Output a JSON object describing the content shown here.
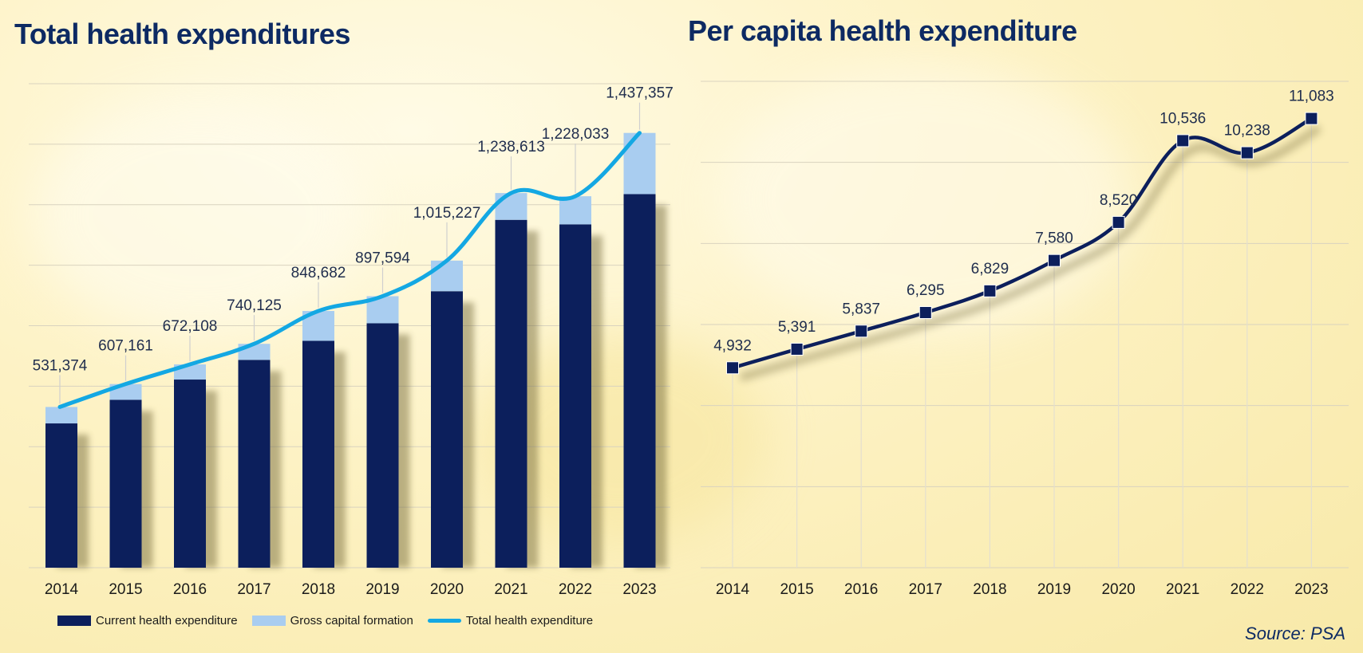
{
  "colors": {
    "current": "#0c1f5c",
    "gross": "#a9cdf0",
    "total_line": "#14a8e3",
    "per_capita_line": "#0c1f5c",
    "grid": "#d9d3bf",
    "title": "#0d2a63"
  },
  "source": "Source: PSA",
  "charts": [
    {
      "title": "Total health expenditures",
      "legend": [
        "Current health expenditure",
        "Gross capital formation",
        "Total health expenditure"
      ]
    },
    {
      "title": "Per capita health expenditure"
    }
  ],
  "chart_data": [
    {
      "type": "bar",
      "title": "Total health expenditures",
      "stacked": true,
      "categories": [
        "2014",
        "2015",
        "2016",
        "2017",
        "2018",
        "2019",
        "2020",
        "2021",
        "2022",
        "2023"
      ],
      "ylim": [
        0,
        1600000
      ],
      "grid": true,
      "legend_position": "bottom",
      "series": [
        {
          "name": "Current health expenditure",
          "kind": "bar",
          "values": [
            477000,
            555000,
            622000,
            687000,
            750000,
            808000,
            914000,
            1150000,
            1135000,
            1235000
          ]
        },
        {
          "name": "Gross capital formation",
          "kind": "bar",
          "values": [
            54374,
            52161,
            50108,
            53125,
            98682,
            89594,
            101227,
            88613,
            93033,
            202357
          ]
        },
        {
          "name": "Total health expenditure",
          "kind": "line",
          "values": [
            531374,
            607161,
            672108,
            740125,
            848682,
            897594,
            1015227,
            1238613,
            1228033,
            1437357
          ]
        }
      ],
      "data_labels": [
        "531,374",
        "607,161",
        "672,108",
        "740,125",
        "848,682",
        "897,594",
        "1,015,227",
        "1,238,613",
        "1,228,033",
        "1,437,357"
      ]
    },
    {
      "type": "line",
      "title": "Per capita health expenditure",
      "categories": [
        "2014",
        "2015",
        "2016",
        "2017",
        "2018",
        "2019",
        "2020",
        "2021",
        "2022",
        "2023"
      ],
      "ylim": [
        0,
        12000
      ],
      "grid": true,
      "series": [
        {
          "values": [
            4932,
            5391,
            5837,
            6295,
            6829,
            7580,
            8520,
            10536,
            10238,
            11083
          ]
        }
      ],
      "data_labels": [
        "4,932",
        "5,391",
        "5,837",
        "6,295",
        "6,829",
        "7,580",
        "8,520",
        "10,536",
        "10,238",
        "11,083"
      ]
    }
  ]
}
